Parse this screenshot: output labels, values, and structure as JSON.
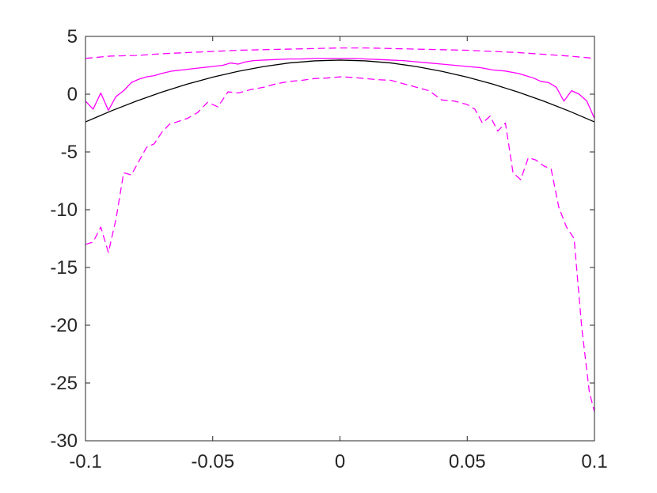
{
  "chart_data": {
    "type": "line",
    "title": "",
    "xlabel": "",
    "ylabel": "",
    "xlim": [
      -0.1,
      0.1
    ],
    "ylim": [
      -30,
      5
    ],
    "xticks": [
      -0.1,
      -0.05,
      0,
      0.05,
      0.1
    ],
    "xtick_labels": [
      "-0.1",
      "-0.05",
      "0",
      "0.05",
      "0.1"
    ],
    "yticks": [
      5,
      0,
      -5,
      -10,
      -15,
      -20,
      -25,
      -30
    ],
    "ytick_labels": [
      "5",
      "0",
      "-5",
      "-10",
      "-15",
      "-20",
      "-25",
      "-30"
    ],
    "grid": false,
    "box": true,
    "series": [
      {
        "color": "#000000",
        "style": "solid",
        "x": [
          -0.1,
          -0.09,
          -0.08,
          -0.07,
          -0.06,
          -0.05,
          -0.04,
          -0.03,
          -0.02,
          -0.01,
          0,
          0.01,
          0.02,
          0.03,
          0.04,
          0.05,
          0.06,
          0.07,
          0.08,
          0.09,
          0.1
        ],
        "y": [
          -2.4,
          -1.46,
          -0.6,
          0.18,
          0.87,
          1.47,
          1.98,
          2.39,
          2.7,
          2.88,
          2.95,
          2.88,
          2.7,
          2.39,
          1.98,
          1.47,
          0.87,
          0.18,
          -0.6,
          -1.46,
          -2.4
        ]
      },
      {
        "color": "#ff00ff",
        "style": "solid",
        "x": [
          -0.1,
          -0.097,
          -0.094,
          -0.091,
          -0.088,
          -0.085,
          -0.082,
          -0.079,
          -0.076,
          -0.073,
          -0.07,
          -0.066,
          -0.062,
          -0.058,
          -0.054,
          -0.05,
          -0.046,
          -0.043,
          -0.04,
          -0.037,
          -0.034,
          -0.03,
          -0.025,
          -0.02,
          -0.015,
          -0.01,
          -0.005,
          0,
          0.005,
          0.01,
          0.015,
          0.02,
          0.025,
          0.03,
          0.035,
          0.04,
          0.045,
          0.05,
          0.055,
          0.06,
          0.065,
          0.07,
          0.073,
          0.076,
          0.079,
          0.082,
          0.085,
          0.088,
          0.091,
          0.094,
          0.097,
          0.1
        ],
        "y": [
          -0.6,
          -1.3,
          0.1,
          -1.4,
          -0.2,
          0.3,
          1.0,
          1.3,
          1.5,
          1.6,
          1.8,
          2.0,
          2.1,
          2.2,
          2.3,
          2.4,
          2.5,
          2.7,
          2.6,
          2.8,
          2.9,
          2.95,
          3.0,
          3.05,
          3.05,
          3.1,
          3.1,
          3.1,
          3.1,
          3.05,
          3.0,
          2.95,
          2.9,
          2.8,
          2.7,
          2.6,
          2.5,
          2.4,
          2.3,
          2.1,
          2.0,
          1.8,
          1.6,
          1.4,
          1.1,
          1.0,
          0.6,
          -0.6,
          0.3,
          0.0,
          -0.6,
          -2.1
        ]
      },
      {
        "color": "#ff00ff",
        "style": "dashed",
        "x": [
          -0.1,
          -0.09,
          -0.08,
          -0.07,
          -0.06,
          -0.05,
          -0.04,
          -0.03,
          -0.02,
          -0.01,
          0,
          0.01,
          0.02,
          0.03,
          0.04,
          0.05,
          0.06,
          0.07,
          0.08,
          0.09,
          0.1
        ],
        "y": [
          3.1,
          3.3,
          3.35,
          3.5,
          3.6,
          3.7,
          3.8,
          3.85,
          3.9,
          3.95,
          4.0,
          4.0,
          3.95,
          3.9,
          3.85,
          3.8,
          3.7,
          3.6,
          3.45,
          3.3,
          3.1
        ]
      },
      {
        "color": "#ff00ff",
        "style": "dashed",
        "x": [
          -0.1,
          -0.097,
          -0.094,
          -0.091,
          -0.088,
          -0.085,
          -0.082,
          -0.079,
          -0.076,
          -0.073,
          -0.07,
          -0.067,
          -0.064,
          -0.06,
          -0.056,
          -0.052,
          -0.048,
          -0.044,
          -0.04,
          -0.035,
          -0.03,
          -0.025,
          -0.02,
          -0.015,
          -0.01,
          -0.005,
          0,
          0.005,
          0.01,
          0.015,
          0.02,
          0.025,
          0.03,
          0.035,
          0.04,
          0.045,
          0.05,
          0.053,
          0.056,
          0.059,
          0.062,
          0.065,
          0.068,
          0.071,
          0.074,
          0.077,
          0.08,
          0.083,
          0.086,
          0.089,
          0.092,
          0.095,
          0.098,
          0.1
        ],
        "y": [
          -13.0,
          -12.8,
          -11.5,
          -13.7,
          -10.8,
          -6.8,
          -7.0,
          -5.8,
          -4.6,
          -4.3,
          -3.3,
          -2.6,
          -2.4,
          -2.1,
          -1.6,
          -0.7,
          -1.1,
          0.2,
          0.1,
          0.4,
          0.6,
          0.9,
          1.1,
          1.2,
          1.35,
          1.4,
          1.5,
          1.45,
          1.35,
          1.25,
          1.2,
          0.9,
          0.6,
          0.3,
          -0.5,
          -0.6,
          -0.9,
          -1.3,
          -2.5,
          -1.9,
          -3.2,
          -2.5,
          -6.8,
          -7.4,
          -5.5,
          -5.7,
          -6.2,
          -6.5,
          -9.8,
          -11.5,
          -12.5,
          -20.2,
          -25.8,
          -27.5
        ]
      }
    ]
  }
}
